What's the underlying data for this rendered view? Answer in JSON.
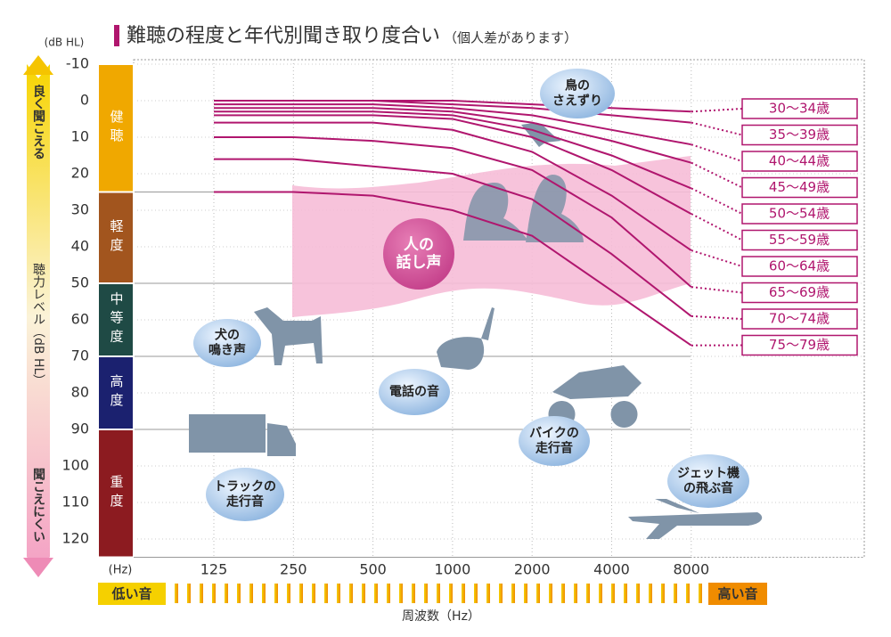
{
  "chart_data": {
    "type": "line",
    "title": "難聴の程度と年代別聞き取り度合い",
    "subtitle": "（個人差があります）",
    "y_unit": "(dB HL)",
    "x_unit": "(Hz)",
    "x_label": "周波数（Hz）",
    "y_label_top": "良く聞こえる",
    "y_label_middle": "聴力レベル（dB HL）",
    "y_label_bottom": "聞こえにくい",
    "low_label": "低い音",
    "high_label": "高い音",
    "categories": [
      "125",
      "250",
      "500",
      "1000",
      "2000",
      "4000",
      "8000"
    ],
    "ylim": [
      -10,
      125
    ],
    "y_inverted": true,
    "yticks": [
      -10,
      0,
      10,
      20,
      30,
      40,
      50,
      60,
      70,
      80,
      90,
      100,
      110,
      120
    ],
    "bands": [
      {
        "label": "健聴",
        "from": -10,
        "to": 25,
        "color": "#f0a800"
      },
      {
        "label": "軽度",
        "from": 25,
        "to": 50,
        "color": "#a2551e"
      },
      {
        "label": "中等度",
        "from": 50,
        "to": 70,
        "color": "#1f4a45"
      },
      {
        "label": "高度",
        "from": 70,
        "to": 90,
        "color": "#1b216f"
      },
      {
        "label": "重度",
        "from": 90,
        "to": 125,
        "color": "#8c1b20"
      }
    ],
    "series_color": "#b0166e",
    "series": [
      {
        "name": "30～34歳",
        "values": [
          0,
          0,
          0,
          0,
          1,
          2,
          3
        ]
      },
      {
        "name": "35～39歳",
        "values": [
          0,
          0,
          0,
          1,
          2,
          4,
          6
        ]
      },
      {
        "name": "40～44歳",
        "values": [
          1,
          1,
          1,
          2,
          4,
          8,
          12
        ]
      },
      {
        "name": "45～49歳",
        "values": [
          2,
          2,
          2,
          3,
          6,
          11,
          17
        ]
      },
      {
        "name": "50～54歳",
        "values": [
          3,
          3,
          3,
          4,
          8,
          15,
          24
        ]
      },
      {
        "name": "55～59歳",
        "values": [
          4,
          4,
          4,
          5,
          10,
          19,
          31
        ]
      },
      {
        "name": "60～64歳",
        "values": [
          6,
          6,
          6,
          8,
          14,
          26,
          41
        ]
      },
      {
        "name": "65～69歳",
        "values": [
          10,
          10,
          11,
          13,
          19,
          32,
          51
        ]
      },
      {
        "name": "70～74歳",
        "values": [
          16,
          16,
          18,
          20,
          27,
          42,
          59
        ]
      },
      {
        "name": "75～79歳",
        "values": [
          25,
          25,
          26,
          30,
          37,
          52,
          67
        ]
      }
    ],
    "annotations": [
      {
        "lines": [
          "鳥の",
          "さえずり"
        ]
      },
      {
        "lines": [
          "人の",
          "話し声"
        ]
      },
      {
        "lines": [
          "犬の",
          "鳴き声"
        ]
      },
      {
        "lines": [
          "電話の音"
        ]
      },
      {
        "lines": [
          "バイクの",
          "走行音"
        ]
      },
      {
        "lines": [
          "トラックの",
          "走行音"
        ]
      },
      {
        "lines": [
          "ジェット機",
          "の飛ぶ音"
        ]
      }
    ]
  }
}
